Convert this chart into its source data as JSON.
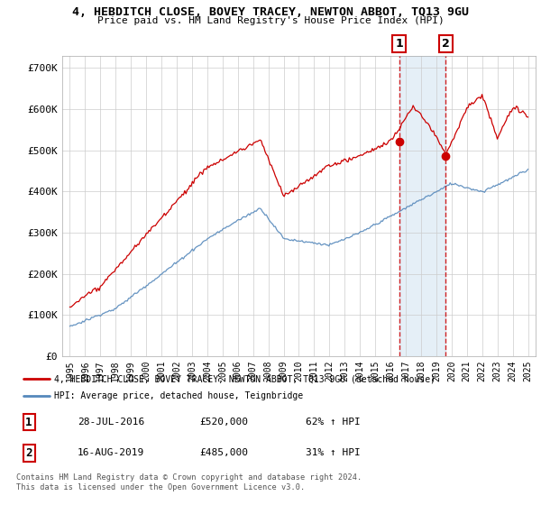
{
  "title": "4, HEBDITCH CLOSE, BOVEY TRACEY, NEWTON ABBOT, TQ13 9GU",
  "subtitle": "Price paid vs. HM Land Registry's House Price Index (HPI)",
  "legend_line1": "4, HEBDITCH CLOSE, BOVEY TRACEY, NEWTON ABBOT, TQ13 9GU (detached house)",
  "legend_line2": "HPI: Average price, detached house, Teignbridge",
  "sale1_label": "1",
  "sale1_date": "28-JUL-2016",
  "sale1_price": "£520,000",
  "sale1_hpi": "62% ↑ HPI",
  "sale2_label": "2",
  "sale2_date": "16-AUG-2019",
  "sale2_price": "£485,000",
  "sale2_hpi": "31% ↑ HPI",
  "footer": "Contains HM Land Registry data © Crown copyright and database right 2024.\nThis data is licensed under the Open Government Licence v3.0.",
  "red_color": "#cc0000",
  "blue_color": "#5588bb",
  "shade_color": "#cce0f0",
  "sale1_x": 2016.57,
  "sale1_y": 520000,
  "sale2_x": 2019.62,
  "sale2_y": 485000,
  "ylim": [
    0,
    730000
  ],
  "xlim": [
    1994.5,
    2025.5
  ],
  "yticks": [
    0,
    100000,
    200000,
    300000,
    400000,
    500000,
    600000,
    700000
  ],
  "ytick_labels": [
    "£0",
    "£100K",
    "£200K",
    "£300K",
    "£400K",
    "£500K",
    "£600K",
    "£700K"
  ],
  "xticks": [
    1995,
    1996,
    1997,
    1998,
    1999,
    2000,
    2001,
    2002,
    2003,
    2004,
    2005,
    2006,
    2007,
    2008,
    2009,
    2010,
    2011,
    2012,
    2013,
    2014,
    2015,
    2016,
    2017,
    2018,
    2019,
    2020,
    2021,
    2022,
    2023,
    2024,
    2025
  ]
}
